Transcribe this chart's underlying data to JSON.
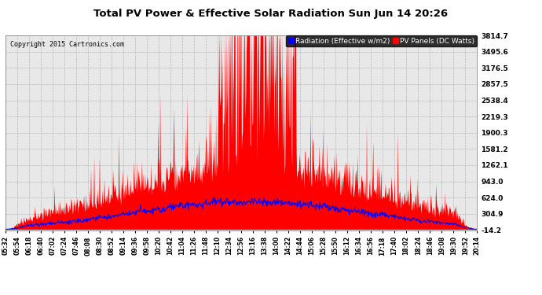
{
  "title": "Total PV Power & Effective Solar Radiation Sun Jun 14 20:26",
  "copyright": "Copyright 2015 Cartronics.com",
  "legend_radiation": "Radiation (Effective w/m2)",
  "legend_pv": "PV Panels (DC Watts)",
  "legend_radiation_color": "#0000ff",
  "legend_pv_color": "#ff0000",
  "legend_bg": "#000000",
  "bg_color": "#ffffff",
  "plot_bg": "#e8e8e8",
  "grid_color": "#aaaaaa",
  "title_color": "#000000",
  "copyright_color": "#000000",
  "pv_fill_color": "#ff0000",
  "radiation_line_color": "#0000ff",
  "ylim_min": -14.2,
  "ylim_max": 3814.7,
  "yticks": [
    -14.2,
    304.9,
    624.0,
    943.0,
    1262.1,
    1581.2,
    1900.3,
    2219.3,
    2538.4,
    2857.5,
    3176.5,
    3495.6,
    3814.7
  ],
  "x_labels": [
    "05:32",
    "05:54",
    "06:18",
    "06:40",
    "07:02",
    "07:24",
    "07:46",
    "08:08",
    "08:30",
    "08:52",
    "09:14",
    "09:36",
    "09:58",
    "10:20",
    "10:42",
    "11:04",
    "11:26",
    "11:48",
    "12:10",
    "12:34",
    "12:56",
    "13:16",
    "13:38",
    "14:00",
    "14:22",
    "14:44",
    "15:06",
    "15:28",
    "15:50",
    "16:12",
    "16:34",
    "16:56",
    "17:18",
    "17:40",
    "18:02",
    "18:24",
    "18:46",
    "19:08",
    "19:30",
    "19:52",
    "20:14"
  ]
}
